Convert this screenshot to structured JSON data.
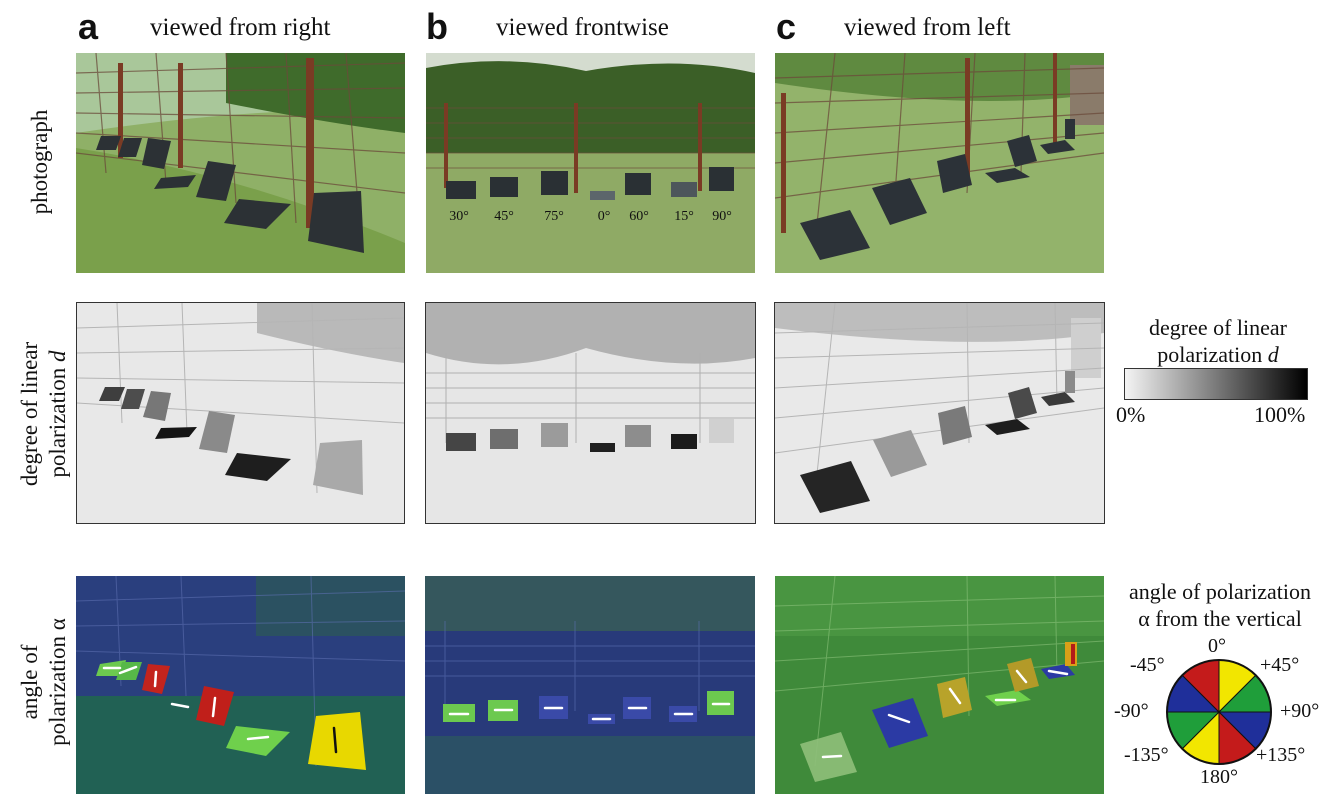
{
  "panels": [
    {
      "letter": "a",
      "title": "viewed from right"
    },
    {
      "letter": "b",
      "title": "viewed frontwise"
    },
    {
      "letter": "c",
      "title": "viewed from left"
    }
  ],
  "rows": {
    "photo": "photograph",
    "dolp_line1": "degree of linear",
    "dolp_line2": "polarization",
    "dolp_symbol": "d",
    "aop_line1": "angle of",
    "aop_line2": "polarization α"
  },
  "angle_labels_b": [
    "30°",
    "45°",
    "75°",
    "0°",
    "60°",
    "15°",
    "90°"
  ],
  "dolp_legend": {
    "title_line1": "degree of linear",
    "title_line2": "polarization",
    "symbol": "d",
    "min": "0%",
    "max": "100%",
    "gradient": [
      "#f4f4f4",
      "#000000"
    ]
  },
  "aop_legend": {
    "title_line1": "angle of polarization",
    "title_line2": "α from the vertical",
    "labels": {
      "top": "0°",
      "top_right": "+45°",
      "right": "+90°",
      "bottom_right": "+135°",
      "bottom": "180°",
      "bottom_left": "-135°",
      "left": "-90°",
      "top_left": "-45°"
    },
    "colors": {
      "yellow": "#f2e600",
      "green": "#1f9e3a",
      "blue": "#1f2f9a",
      "red": "#c41b1b"
    }
  }
}
